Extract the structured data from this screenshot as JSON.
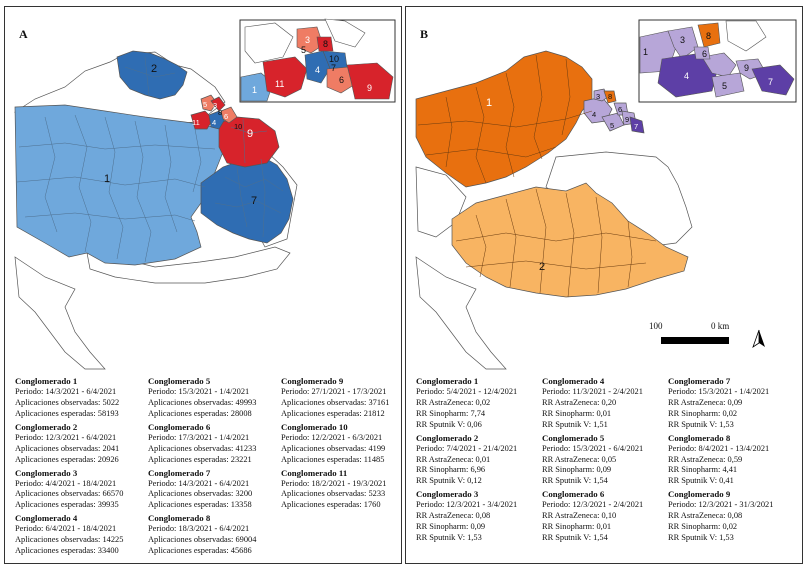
{
  "panel_a": {
    "label": "A",
    "colors": {
      "light_blue": "#6fa8dc",
      "dark_blue": "#2f6db3",
      "red": "#d7232b",
      "salmon": "#ef7c64",
      "border": "#555555"
    },
    "map_labels": [
      "1",
      "2",
      "3",
      "4",
      "5",
      "6",
      "7",
      "8",
      "9",
      "10",
      "11"
    ],
    "inset_labels": [
      "1",
      "3",
      "4",
      "5",
      "6",
      "7",
      "8",
      "9",
      "10",
      "11"
    ],
    "clusters": [
      {
        "title": "Conglomerado 1",
        "period": "Periodo: 14/3/2021 - 6/4/2021",
        "observed": "Aplicaciones observadas: 5022",
        "expected": "Aplicaciones esperadas: 58193"
      },
      {
        "title": "Conglomerado 2",
        "period": "Periodo: 12/3/2021 - 6/4/2021",
        "observed": "Aplicaciones observadas: 2041",
        "expected": "Aplicaciones esperadas: 20926"
      },
      {
        "title": "Conglomerado 3",
        "period": "Periodo: 4/4/2021 - 18/4/2021",
        "observed": "Aplicaciones observadas: 66570",
        "expected": "Aplicaciones esperadas: 39935"
      },
      {
        "title": "Conglomerado 4",
        "period": "Periodo: 6/4/2021 - 18/4/2021",
        "observed": "Aplicaciones observadas: 14225",
        "expected": "Aplicaciones esperadas: 33400"
      },
      {
        "title": "Conglomerado 5",
        "period": "Periodo: 15/3/2021 - 1/4/2021",
        "observed": "Aplicaciones observadas: 49993",
        "expected": "Aplicaciones esperadas: 28008"
      },
      {
        "title": "Conglomerado 6",
        "period": "Periodo: 17/3/2021 - 1/4/2021",
        "observed": "Aplicaciones observadas: 41233",
        "expected": "Aplicaciones esperadas: 23221"
      },
      {
        "title": "Conglomerado 7",
        "period": "Periodo: 14/3/2021 - 6/4/2021",
        "observed": "Aplicaciones observadas: 3200",
        "expected": "Aplicaciones esperadas: 13358"
      },
      {
        "title": "Conglomerado 8",
        "period": "Periodo: 18/3/2021 - 6/4/2021",
        "observed": "Aplicaciones observadas: 69004",
        "expected": "Aplicaciones esperadas: 45686"
      },
      {
        "title": "Conglomerado 9",
        "period": "Periodo: 27/1/2021 - 17/3/2021",
        "observed": "Aplicaciones observadas: 37161",
        "expected": "Aplicaciones esperadas: 21812"
      },
      {
        "title": "Conglomerado 10",
        "period": "Periodo: 12/2/2021 - 6/3/2021",
        "observed": "Aplicaciones observadas: 4199",
        "expected": "Aplicaciones esperadas: 11485"
      },
      {
        "title": "Conglomerado 11",
        "period": "Periodo: 18/2/2021 - 19/3/2021",
        "observed": "Aplicaciones observadas: 5233",
        "expected": "Aplicaciones esperadas: 1760"
      }
    ]
  },
  "panel_b": {
    "label": "B",
    "colors": {
      "orange": "#e8700f",
      "light_orange": "#f8b462",
      "dark_purple": "#5d3fa6",
      "light_purple": "#b7a6d8",
      "border": "#555555"
    },
    "map_labels": [
      "1",
      "2",
      "3",
      "4",
      "5",
      "6",
      "7",
      "8",
      "9"
    ],
    "inset_labels": [
      "1",
      "3",
      "4",
      "5",
      "6",
      "7",
      "8",
      "9"
    ],
    "scale": {
      "left": "100",
      "right": "0 km"
    },
    "clusters": [
      {
        "title": "Conglomerado 1",
        "period": "Periodo: 5/4/2021 - 12/4/2021",
        "astrazeneca": "RR AstraZeneca: 0,02",
        "sinopharm": "RR Sinopharm: 7,74",
        "sputnik": "RR Sputnik V: 0,06"
      },
      {
        "title": "Conglomerado 2",
        "period": "Periodo: 7/4/2021 - 21/4/2021",
        "astrazeneca": "RR AstraZeneca: 0,01",
        "sinopharm": "RR Sinopharm: 6,96",
        "sputnik": "RR Sputnik V: 0,12"
      },
      {
        "title": "Conglomerado 3",
        "period": "Periodo: 12/3/2021 - 3/4/2021",
        "astrazeneca": "RR AstraZeneca: 0,08",
        "sinopharm": "RR Sinopharm: 0,09",
        "sputnik": "RR Sputnik V: 1,53"
      },
      {
        "title": "Conglomerado 4",
        "period": "Periodo: 11/3/2021 - 2/4/2021",
        "astrazeneca": "RR AstraZeneca: 0,20",
        "sinopharm": "RR Sinopharm: 0,01",
        "sputnik": "RR Sputnik V: 1,51"
      },
      {
        "title": "Conglomerado 5",
        "period": "Periodo: 15/3/2021 - 6/4/2021",
        "astrazeneca": "RR AstraZeneca: 0,05",
        "sinopharm": "RR Sinopharm: 0,09",
        "sputnik": "RR Sputnik V: 1,54"
      },
      {
        "title": "Conglomerado 6",
        "period": "Periodo: 12/3/2021 - 2/4/2021",
        "astrazeneca": "RR AstraZeneca: 0,10",
        "sinopharm": "RR Sinopharm: 0,01",
        "sputnik": "RR Sputnik V: 1,54"
      },
      {
        "title": "Conglomerado 7",
        "period": "Periodo: 15/3/2021 - 1/4/2021",
        "astrazeneca": "RR AstraZeneca: 0,09",
        "sinopharm": "RR Sinopharm: 0,02",
        "sputnik": "RR Sputnik V: 1,53"
      },
      {
        "title": "Conglomerado 8",
        "period": "Periodo: 8/4/2021 - 13/4/2021",
        "astrazeneca": "RR AstraZeneca: 0,59",
        "sinopharm": "RR Sinopharm: 4,41",
        "sputnik": "RR Sputnik V: 0,41"
      },
      {
        "title": "Conglomerado 9",
        "period": "Periodo: 12/3/2021 - 31/3/2021",
        "astrazeneca": "RR AstraZeneca: 0,08",
        "sinopharm": "RR Sinopharm: 0,02",
        "sputnik": "RR Sputnik V: 1,53"
      }
    ]
  }
}
